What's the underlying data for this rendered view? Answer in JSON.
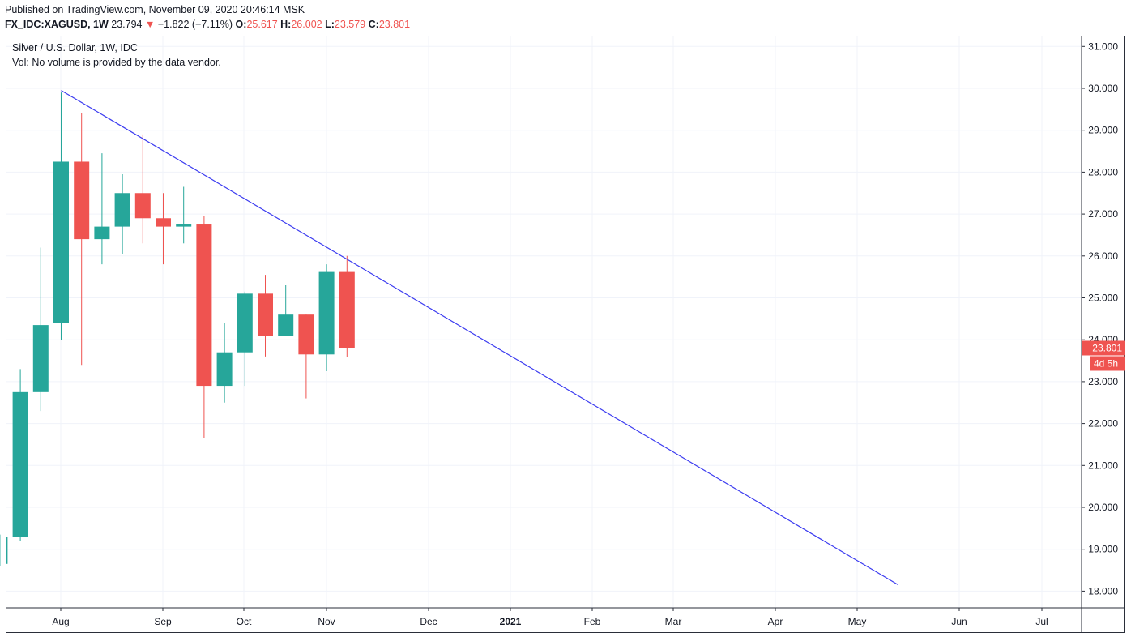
{
  "header": {
    "published": "Published on TradingView.com, November 09, 2020 20:46:14 MSK",
    "symbol": "FX_IDC:XAGUSD, 1W",
    "last": "23.794",
    "arrow": "▼",
    "change": "−1.822 (−7.11%)",
    "o_label": "O:",
    "o_value": "25.617",
    "h_label": "H:",
    "h_value": "26.002",
    "l_label": "L:",
    "l_value": "23.579",
    "c_label": "C:",
    "c_value": "23.801"
  },
  "legend": {
    "title": "Silver / U.S. Dollar, 1W, IDC",
    "volume_note": "Vol: No volume is provided by the data vendor."
  },
  "colors": {
    "up": "#26a69a",
    "down": "#ef5350",
    "trendline": "#3c3cf0",
    "grid": "#f0f3fa",
    "axis_text": "#131722"
  },
  "chart_data": {
    "type": "candlestick",
    "title": "Silver / U.S. Dollar, 1W, IDC",
    "y_axis_ticks": [
      "31.000",
      "30.000",
      "29.000",
      "28.000",
      "27.000",
      "26.000",
      "25.000",
      "24.000",
      "23.000",
      "22.000",
      "21.000",
      "20.000",
      "19.000",
      "18.000"
    ],
    "ylim": [
      18.0,
      31.0
    ],
    "x_axis_ticks": [
      "Aug",
      "Sep",
      "Oct",
      "Nov",
      "Dec",
      "2021",
      "Feb",
      "Mar",
      "Apr",
      "May",
      "Jun",
      "Jul"
    ],
    "candles": [
      {
        "period": "2020-07-13",
        "open": 18.65,
        "high": 19.35,
        "low": 18.6,
        "close": 19.3
      },
      {
        "period": "2020-07-20",
        "open": 19.3,
        "high": 23.3,
        "low": 19.2,
        "close": 22.75
      },
      {
        "period": "2020-07-27",
        "open": 22.75,
        "high": 26.2,
        "low": 22.3,
        "close": 24.35
      },
      {
        "period": "2020-08-03",
        "open": 24.4,
        "high": 29.9,
        "low": 24.0,
        "close": 28.25
      },
      {
        "period": "2020-08-10",
        "open": 28.25,
        "high": 29.4,
        "low": 23.4,
        "close": 26.4
      },
      {
        "period": "2020-08-17",
        "open": 26.4,
        "high": 28.45,
        "low": 25.8,
        "close": 26.7
      },
      {
        "period": "2020-08-24",
        "open": 26.7,
        "high": 27.95,
        "low": 26.05,
        "close": 27.5
      },
      {
        "period": "2020-08-31",
        "open": 27.5,
        "high": 28.9,
        "low": 26.3,
        "close": 26.9
      },
      {
        "period": "2020-09-07",
        "open": 26.9,
        "high": 27.5,
        "low": 25.8,
        "close": 26.7
      },
      {
        "period": "2020-09-14",
        "open": 26.7,
        "high": 27.65,
        "low": 26.3,
        "close": 26.75
      },
      {
        "period": "2020-09-21",
        "open": 26.75,
        "high": 26.95,
        "low": 21.65,
        "close": 22.9
      },
      {
        "period": "2020-09-28",
        "open": 22.9,
        "high": 24.4,
        "low": 22.5,
        "close": 23.7
      },
      {
        "period": "2020-10-05",
        "open": 23.7,
        "high": 25.15,
        "low": 22.9,
        "close": 25.1
      },
      {
        "period": "2020-10-12",
        "open": 25.1,
        "high": 25.55,
        "low": 23.6,
        "close": 24.1
      },
      {
        "period": "2020-10-19",
        "open": 24.1,
        "high": 25.3,
        "low": 24.1,
        "close": 24.6
      },
      {
        "period": "2020-10-26",
        "open": 24.6,
        "high": 24.6,
        "low": 22.6,
        "close": 23.65
      },
      {
        "period": "2020-11-02",
        "open": 23.65,
        "high": 25.8,
        "low": 23.25,
        "close": 25.617
      },
      {
        "period": "2020-11-09",
        "open": 25.617,
        "high": 26.002,
        "low": 23.579,
        "close": 23.801
      }
    ],
    "trendline": {
      "start": {
        "period": "2020-08-03",
        "value": 29.95
      },
      "end": {
        "period": "2021-05-17",
        "value": 18.15
      }
    },
    "last_price": {
      "value": "23.801",
      "countdown": "4d 5h"
    },
    "grid": true
  }
}
